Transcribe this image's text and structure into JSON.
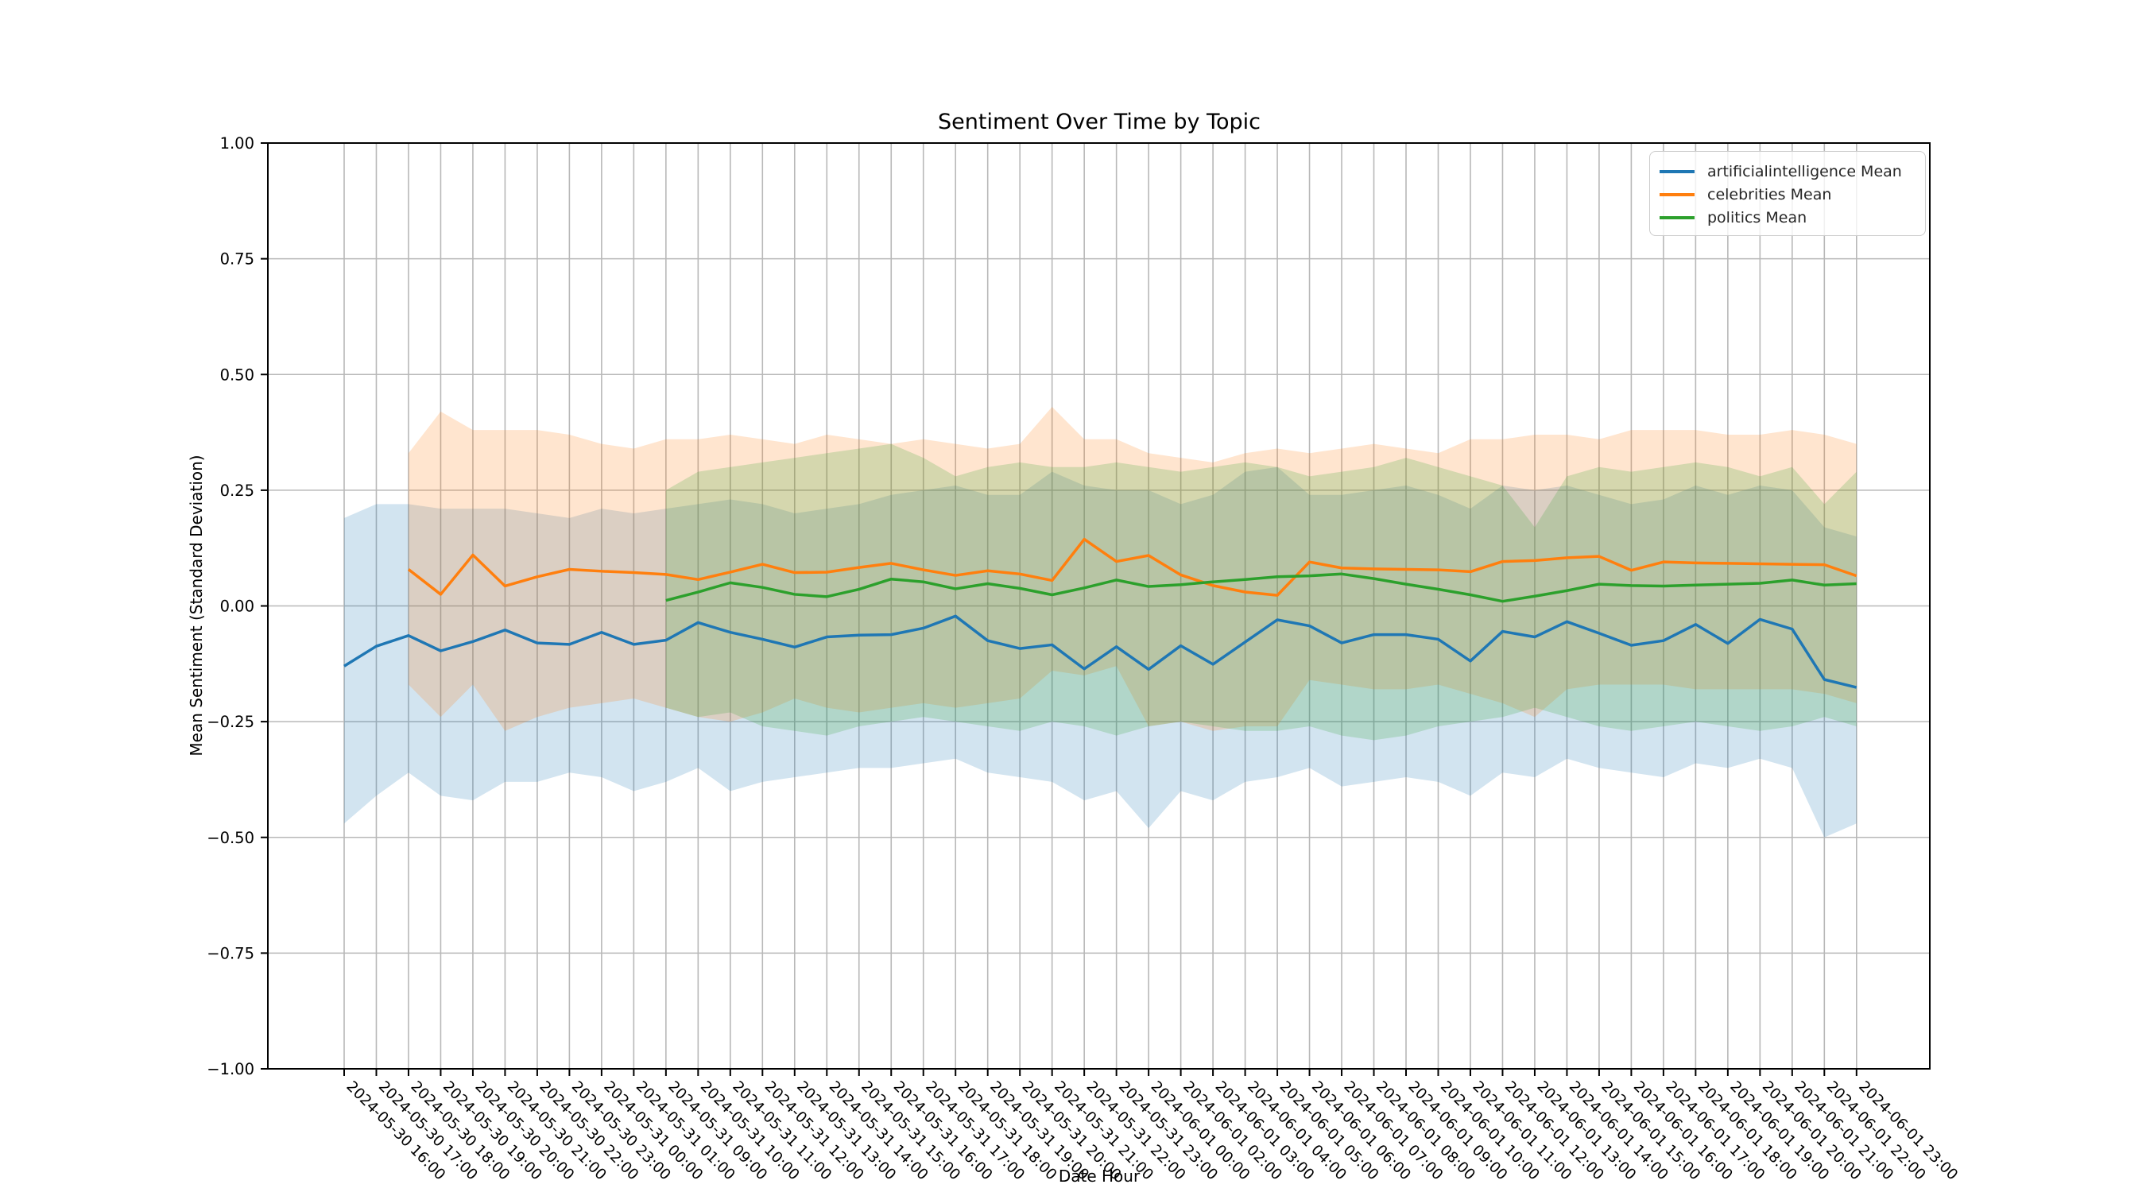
{
  "title": "Sentiment Over Time by Topic",
  "xlabel": "Date Hour",
  "ylabel": "Mean Sentiment (Standard Deviation)",
  "chart_data": {
    "type": "line",
    "title": "Sentiment Over Time by Topic",
    "xlabel": "Date Hour",
    "ylabel": "Mean Sentiment (Standard Deviation)",
    "ylim": [
      -1.0,
      1.0
    ],
    "grid": true,
    "legend_position": "upper right",
    "ytick_labels": [
      "1.00",
      "0.75",
      "0.50",
      "0.25",
      "0.00",
      "−0.25",
      "−0.50",
      "−0.75",
      "−1.00"
    ],
    "ytick_values": [
      1.0,
      0.75,
      0.5,
      0.25,
      0.0,
      -0.25,
      -0.5,
      -0.75,
      -1.0
    ],
    "categories": [
      "2024-05-30 16:00",
      "2024-05-30 17:00",
      "2024-05-30 18:00",
      "2024-05-30 19:00",
      "2024-05-30 20:00",
      "2024-05-30 21:00",
      "2024-05-30 22:00",
      "2024-05-30 23:00",
      "2024-05-31 00:00",
      "2024-05-31 01:00",
      "2024-05-31 09:00",
      "2024-05-31 10:00",
      "2024-05-31 11:00",
      "2024-05-31 12:00",
      "2024-05-31 13:00",
      "2024-05-31 14:00",
      "2024-05-31 15:00",
      "2024-05-31 16:00",
      "2024-05-31 17:00",
      "2024-05-31 18:00",
      "2024-05-31 19:00",
      "2024-05-31 20:00",
      "2024-05-31 21:00",
      "2024-05-31 22:00",
      "2024-05-31 23:00",
      "2024-06-01 00:00",
      "2024-06-01 02:00",
      "2024-06-01 03:00",
      "2024-06-01 04:00",
      "2024-06-01 05:00",
      "2024-06-01 06:00",
      "2024-06-01 07:00",
      "2024-06-01 08:00",
      "2024-06-01 09:00",
      "2024-06-01 10:00",
      "2024-06-01 11:00",
      "2024-06-01 12:00",
      "2024-06-01 13:00",
      "2024-06-01 14:00",
      "2024-06-01 15:00",
      "2024-06-01 16:00",
      "2024-06-01 17:00",
      "2024-06-01 18:00",
      "2024-06-01 19:00",
      "2024-06-01 20:00",
      "2024-06-01 21:00",
      "2024-06-01 22:00",
      "2024-06-01 23:00"
    ],
    "series": [
      {
        "name": "artificialintelligence Mean",
        "color": "#1f77b4",
        "mean": [
          -0.13,
          -0.087,
          -0.064,
          -0.097,
          -0.077,
          -0.052,
          -0.08,
          -0.083,
          -0.057,
          -0.083,
          -0.074,
          -0.036,
          -0.057,
          -0.072,
          -0.089,
          -0.067,
          -0.063,
          -0.062,
          -0.048,
          -0.022,
          -0.075,
          -0.092,
          -0.084,
          -0.136,
          -0.088,
          -0.137,
          -0.086,
          -0.126,
          -0.078,
          -0.03,
          -0.043,
          -0.08,
          -0.062,
          -0.062,
          -0.072,
          -0.119,
          -0.055,
          -0.067,
          -0.034,
          -0.059,
          -0.085,
          -0.075,
          -0.04,
          -0.081,
          -0.029,
          -0.05,
          -0.159,
          -0.176
        ],
        "band_upper": [
          0.19,
          0.22,
          0.22,
          0.21,
          0.21,
          0.21,
          0.2,
          0.19,
          0.21,
          0.2,
          0.21,
          0.22,
          0.23,
          0.22,
          0.2,
          0.21,
          0.22,
          0.24,
          0.25,
          0.26,
          0.24,
          0.24,
          0.29,
          0.26,
          0.25,
          0.25,
          0.22,
          0.24,
          0.29,
          0.3,
          0.24,
          0.24,
          0.25,
          0.26,
          0.24,
          0.21,
          0.26,
          0.25,
          0.26,
          0.24,
          0.22,
          0.23,
          0.26,
          0.24,
          0.26,
          0.25,
          0.17,
          0.15
        ],
        "band_lower": [
          -0.47,
          -0.41,
          -0.36,
          -0.41,
          -0.42,
          -0.38,
          -0.38,
          -0.36,
          -0.37,
          -0.4,
          -0.38,
          -0.35,
          -0.4,
          -0.38,
          -0.37,
          -0.36,
          -0.35,
          -0.35,
          -0.34,
          -0.33,
          -0.36,
          -0.37,
          -0.38,
          -0.42,
          -0.4,
          -0.48,
          -0.4,
          -0.42,
          -0.38,
          -0.37,
          -0.35,
          -0.39,
          -0.38,
          -0.37,
          -0.38,
          -0.41,
          -0.36,
          -0.37,
          -0.33,
          -0.35,
          -0.36,
          -0.37,
          -0.34,
          -0.35,
          -0.33,
          -0.35,
          -0.5,
          -0.47
        ]
      },
      {
        "name": "celebrities Mean",
        "color": "#ff7f0e",
        "mean": [
          null,
          null,
          0.079,
          0.025,
          0.11,
          0.043,
          0.063,
          0.079,
          0.075,
          0.072,
          0.068,
          0.057,
          0.073,
          0.09,
          0.072,
          0.073,
          0.083,
          0.092,
          0.078,
          0.066,
          0.076,
          0.069,
          0.055,
          0.144,
          0.096,
          0.109,
          0.067,
          0.044,
          0.03,
          0.023,
          0.095,
          0.082,
          0.08,
          0.079,
          0.078,
          0.074,
          0.096,
          0.098,
          0.104,
          0.107,
          0.077,
          0.095,
          0.093,
          0.092,
          0.091,
          0.09,
          0.089,
          0.065
        ],
        "band_upper": [
          null,
          null,
          0.33,
          0.42,
          0.38,
          0.38,
          0.38,
          0.37,
          0.35,
          0.34,
          0.36,
          0.36,
          0.37,
          0.36,
          0.35,
          0.37,
          0.36,
          0.35,
          0.36,
          0.35,
          0.34,
          0.35,
          0.43,
          0.36,
          0.36,
          0.33,
          0.32,
          0.31,
          0.33,
          0.34,
          0.33,
          0.34,
          0.35,
          0.34,
          0.33,
          0.36,
          0.36,
          0.37,
          0.37,
          0.36,
          0.38,
          0.38,
          0.38,
          0.37,
          0.37,
          0.38,
          0.37,
          0.35
        ],
        "band_lower": [
          null,
          null,
          -0.17,
          -0.24,
          -0.17,
          -0.27,
          -0.24,
          -0.22,
          -0.21,
          -0.2,
          -0.22,
          -0.24,
          -0.25,
          -0.23,
          -0.2,
          -0.22,
          -0.23,
          -0.22,
          -0.21,
          -0.22,
          -0.21,
          -0.2,
          -0.14,
          -0.15,
          -0.13,
          -0.26,
          -0.25,
          -0.27,
          -0.26,
          -0.26,
          -0.16,
          -0.17,
          -0.18,
          -0.18,
          -0.17,
          -0.19,
          -0.21,
          -0.24,
          -0.18,
          -0.17,
          -0.17,
          -0.17,
          -0.18,
          -0.18,
          -0.18,
          -0.18,
          -0.19,
          -0.21
        ]
      },
      {
        "name": "politics Mean",
        "color": "#2ca02c",
        "mean": [
          null,
          null,
          null,
          null,
          null,
          null,
          null,
          null,
          null,
          null,
          0.012,
          0.03,
          0.05,
          0.04,
          0.025,
          0.02,
          0.036,
          0.058,
          0.052,
          0.037,
          0.048,
          0.038,
          0.024,
          0.039,
          0.056,
          0.042,
          0.046,
          0.052,
          0.057,
          0.063,
          0.065,
          0.069,
          0.059,
          0.047,
          0.036,
          0.024,
          0.01,
          0.021,
          0.033,
          0.047,
          0.044,
          0.043,
          0.045,
          0.047,
          0.049,
          0.056,
          0.045,
          0.048
        ],
        "band_upper": [
          null,
          null,
          null,
          null,
          null,
          null,
          null,
          null,
          null,
          null,
          0.25,
          0.29,
          0.3,
          0.31,
          0.32,
          0.33,
          0.34,
          0.35,
          0.32,
          0.28,
          0.3,
          0.31,
          0.3,
          0.3,
          0.31,
          0.3,
          0.29,
          0.3,
          0.31,
          0.3,
          0.28,
          0.29,
          0.3,
          0.32,
          0.3,
          0.28,
          0.26,
          0.17,
          0.28,
          0.3,
          0.29,
          0.3,
          0.31,
          0.3,
          0.28,
          0.3,
          0.22,
          0.29
        ],
        "band_lower": [
          null,
          null,
          null,
          null,
          null,
          null,
          null,
          null,
          null,
          null,
          -0.22,
          -0.24,
          -0.23,
          -0.26,
          -0.27,
          -0.28,
          -0.26,
          -0.25,
          -0.24,
          -0.25,
          -0.26,
          -0.27,
          -0.25,
          -0.26,
          -0.28,
          -0.26,
          -0.25,
          -0.26,
          -0.27,
          -0.27,
          -0.26,
          -0.28,
          -0.29,
          -0.28,
          -0.26,
          -0.25,
          -0.24,
          -0.22,
          -0.24,
          -0.26,
          -0.27,
          -0.26,
          -0.25,
          -0.26,
          -0.27,
          -0.26,
          -0.24,
          -0.26
        ]
      }
    ]
  },
  "legend": {
    "items": [
      {
        "label": "artificialintelligence Mean",
        "color": "#1f77b4"
      },
      {
        "label": "celebrities Mean",
        "color": "#ff7f0e"
      },
      {
        "label": "politics Mean",
        "color": "#2ca02c"
      }
    ]
  },
  "style": {
    "grid_color": "#b8b8b8",
    "spine_color": "#000000",
    "band_alpha": "0.2"
  }
}
